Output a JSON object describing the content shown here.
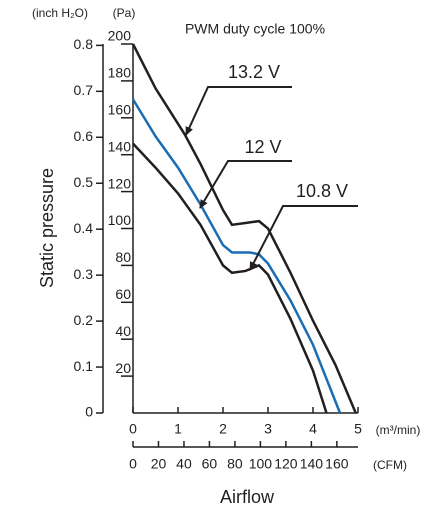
{
  "chart_data": {
    "type": "line",
    "title": "PWM duty cycle 100%",
    "y_label": "Static pressure",
    "x_label": "Airflow",
    "y_unit": "(Pa)",
    "y2_unit": "(inch H₂O)",
    "x_unit": "(m³/min)",
    "x2_unit": "(CFM)",
    "xlim": [
      0,
      5
    ],
    "xticks": [
      0,
      1,
      2,
      3,
      4,
      5
    ],
    "x2lim": [
      0,
      176.6
    ],
    "x2ticks": [
      0,
      20,
      40,
      60,
      80,
      100,
      120,
      140,
      160
    ],
    "ylim": [
      0,
      200
    ],
    "yticks": [
      20,
      40,
      60,
      80,
      100,
      120,
      140,
      160,
      180,
      200
    ],
    "y2lim": [
      0,
      0.803
    ],
    "y2ticks": [
      0,
      0.1,
      0.2,
      0.3,
      0.4,
      0.5,
      0.6,
      0.7,
      0.8
    ],
    "series": [
      {
        "name": "13.2 V",
        "color": "#231f20",
        "x": [
          0,
          0.5,
          1.15,
          1.5,
          2.0,
          2.2,
          2.5,
          2.8,
          3.0,
          3.5,
          4.0,
          4.5,
          4.95
        ],
        "values": [
          200,
          176,
          151,
          135,
          110,
          102,
          103,
          104,
          100,
          76,
          50,
          26,
          0
        ]
      },
      {
        "name": "12 V",
        "color": "#1a6db3",
        "x": [
          0,
          0.5,
          1.0,
          1.5,
          2.0,
          2.2,
          2.6,
          2.8,
          3.0,
          3.5,
          4.0,
          4.6
        ],
        "values": [
          170,
          150,
          133,
          113,
          91,
          87,
          87,
          86,
          81,
          61,
          37,
          0
        ]
      },
      {
        "name": "10.8 V",
        "color": "#231f20",
        "x": [
          0,
          0.5,
          1.0,
          1.5,
          2.0,
          2.2,
          2.5,
          2.8,
          3.0,
          3.5,
          4.0,
          4.3
        ],
        "values": [
          146,
          133,
          119,
          102,
          80,
          76,
          77,
          80,
          75,
          51,
          23,
          0
        ]
      }
    ]
  }
}
